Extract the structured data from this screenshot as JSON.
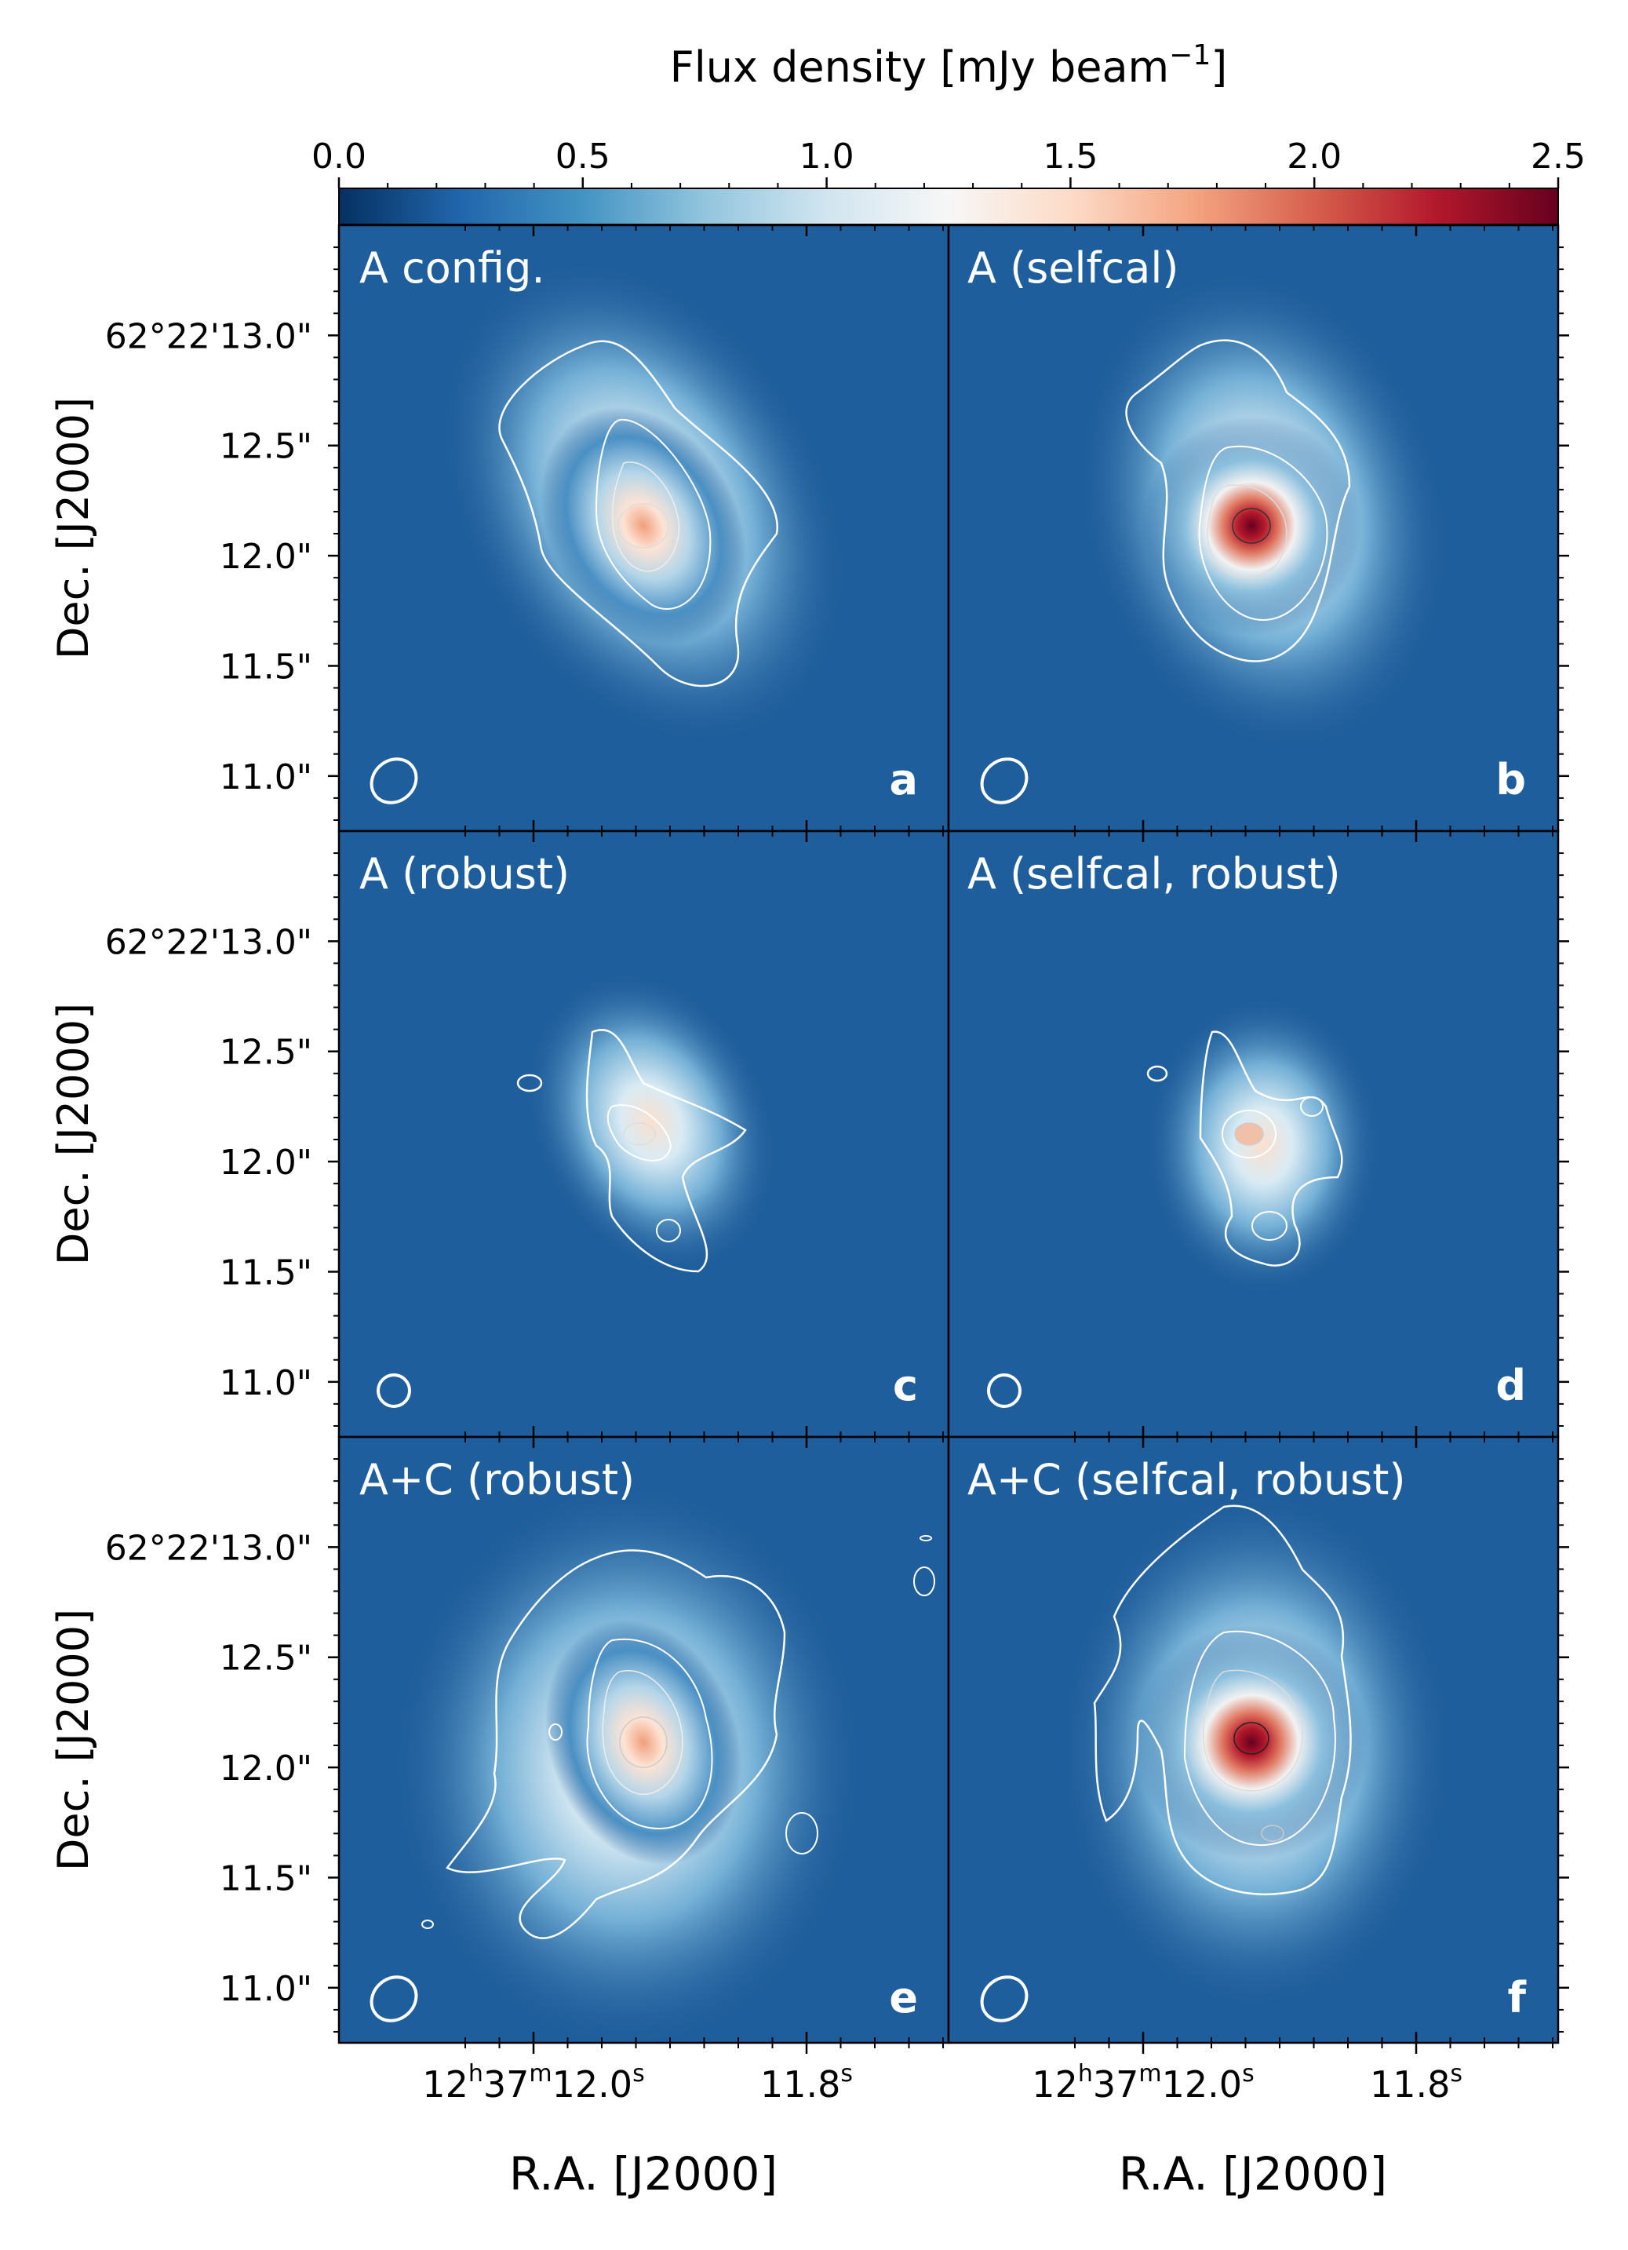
{
  "chart_data": {
    "type": "heatmap",
    "colorbar": {
      "label": "Flux density [mJy beam",
      "label_exp": "−1",
      "label_close": "]",
      "range": [
        0.0,
        2.5
      ],
      "ticks": [
        "0.0",
        "0.5",
        "1.0",
        "1.5",
        "2.0",
        "2.5"
      ],
      "colormap": [
        "#053061",
        "#2166ac",
        "#4393c3",
        "#92c5de",
        "#d1e5f0",
        "#f7f7f7",
        "#fddbc7",
        "#f4a582",
        "#d6604d",
        "#b2182b",
        "#67001f"
      ]
    },
    "y_axis": {
      "label": "Dec. [J2000]",
      "ticks": [
        "62°22'13.0\"",
        "12.5\"",
        "12.0\"",
        "11.5\"",
        "11.0\""
      ],
      "values": [
        13.0,
        12.5,
        12.0,
        11.5,
        11.0
      ],
      "range": [
        10.75,
        13.5
      ]
    },
    "x_axis": {
      "label": "R.A. [J2000]",
      "tick_main": "12",
      "tick_h": "h",
      "tick_37": "37",
      "tick_m": "m",
      "tick_12": "12.0",
      "tick_s": "s",
      "tick_2": "11.8",
      "tick_2s": "s",
      "values": [
        12.0,
        11.8
      ]
    },
    "panels": [
      {
        "title": "A config.",
        "letter": "a",
        "peak": 1.6
      },
      {
        "title": "A (selfcal)",
        "letter": "b",
        "peak": 2.5
      },
      {
        "title": "A (robust)",
        "letter": "c",
        "peak": 1.1
      },
      {
        "title": "A (selfcal, robust)",
        "letter": "d",
        "peak": 1.3
      },
      {
        "title": "A+C (robust)",
        "letter": "e",
        "peak": 1.6
      },
      {
        "title": "A+C (selfcal, robust)",
        "letter": "f",
        "peak": 2.5
      }
    ]
  }
}
